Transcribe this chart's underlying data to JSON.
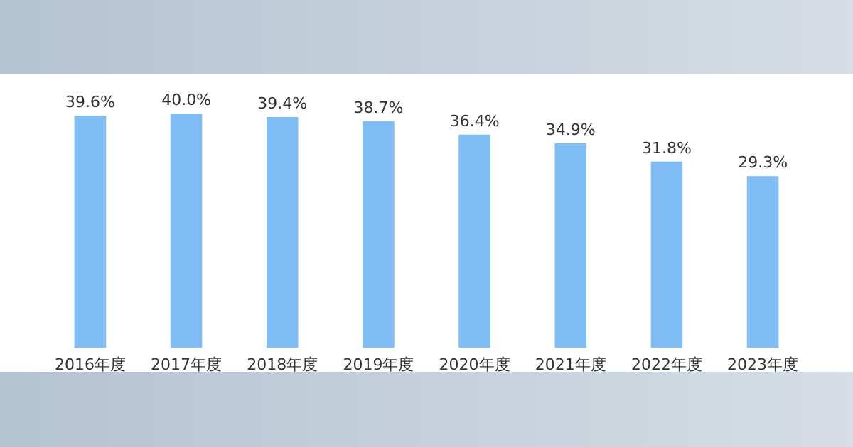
{
  "chart_data": {
    "type": "bar",
    "categories": [
      "2016年度",
      "2017年度",
      "2018年度",
      "2019年度",
      "2020年度",
      "2021年度",
      "2022年度",
      "2023年度"
    ],
    "values": [
      39.6,
      40.0,
      39.4,
      38.7,
      36.4,
      34.9,
      31.8,
      29.3
    ],
    "value_labels": [
      "39.6%",
      "40.0%",
      "39.4%",
      "38.7%",
      "36.4%",
      "34.9%",
      "31.8%",
      "29.3%"
    ],
    "color": "#80bdf4"
  }
}
